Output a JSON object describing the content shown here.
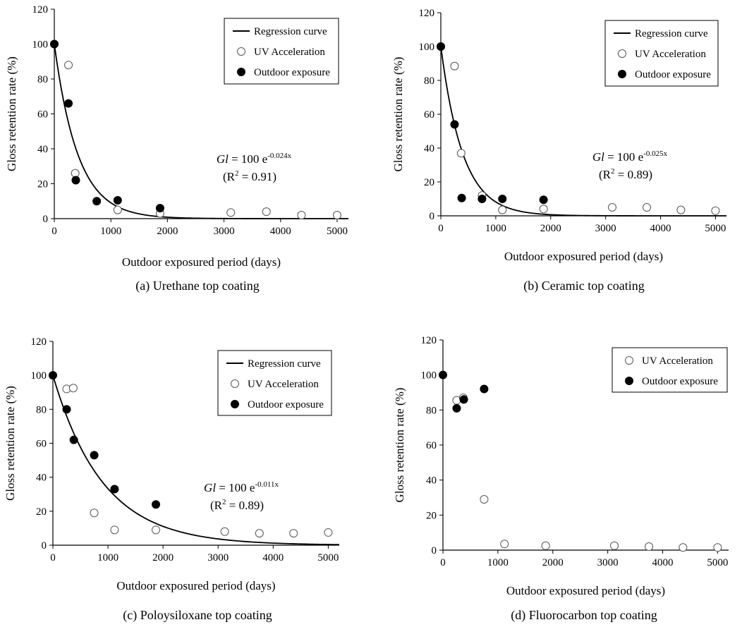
{
  "chart_data": [
    {
      "type": "scatter",
      "caption": "(a) Urethane top coating",
      "xlabel": "Outdoor exposured period (days)",
      "ylabel": "Gloss retention rate (%)",
      "xlim": [
        0,
        5200
      ],
      "ylim": [
        0,
        120
      ],
      "xticks": [
        0,
        1000,
        2000,
        3000,
        4000,
        5000
      ],
      "yticks": [
        0,
        20,
        40,
        60,
        80,
        100,
        120
      ],
      "legend_position": "top-right",
      "equation": {
        "lhs": "Gl",
        "rhs": " = 100 e",
        "exponent": "-0.024x",
        "r2_open": "(R",
        "r2_sup": "2",
        "r2_close": " = 0.91)"
      },
      "regression_k": 0.0024,
      "series": [
        {
          "name": "Regression curve",
          "kind": "line",
          "color": "#000000"
        },
        {
          "name": "UV Acceleration",
          "kind": "open-marker",
          "x": [
            0,
            250,
            370,
            1120,
            1870,
            3120,
            3750,
            4370,
            5000
          ],
          "y": [
            100,
            88,
            26,
            5,
            3,
            3.5,
            4,
            2,
            2
          ]
        },
        {
          "name": "Outdoor exposure",
          "kind": "filled-marker",
          "x": [
            0,
            250,
            380,
            750,
            1120,
            1870
          ],
          "y": [
            100,
            66,
            22,
            10,
            10.5,
            6
          ]
        }
      ]
    },
    {
      "type": "scatter",
      "caption": "(b) Ceramic top coating",
      "xlabel": "Outdoor exposured period (days)",
      "ylabel": "Gloss retention rate (%)",
      "xlim": [
        0,
        5200
      ],
      "ylim": [
        0,
        120
      ],
      "xticks": [
        0,
        1000,
        2000,
        3000,
        4000,
        5000
      ],
      "yticks": [
        0,
        20,
        40,
        60,
        80,
        100,
        120
      ],
      "legend_position": "top-right",
      "equation": {
        "lhs": "Gl",
        "rhs": " = 100 e",
        "exponent": "-0.025x",
        "r2_open": "(R",
        "r2_sup": "2",
        "r2_close": " = 0.89)"
      },
      "regression_k": 0.0025,
      "series": [
        {
          "name": "Regression curve",
          "kind": "line",
          "color": "#000000"
        },
        {
          "name": "UV Acceleration",
          "kind": "open-marker",
          "x": [
            0,
            250,
            370,
            750,
            1120,
            1870,
            3120,
            3750,
            4370,
            5000
          ],
          "y": [
            100,
            88.5,
            37,
            12,
            3.5,
            4,
            5,
            5,
            3.5,
            3
          ]
        },
        {
          "name": "Outdoor exposure",
          "kind": "filled-marker",
          "x": [
            0,
            250,
            380,
            750,
            1120,
            1870
          ],
          "y": [
            100,
            54,
            10.5,
            10,
            10,
            9.5
          ]
        }
      ]
    },
    {
      "type": "scatter",
      "caption": "(c) Poloysiloxane top coating",
      "xlabel": "Outdoor exposured period (days)",
      "ylabel": "Gloss retention rate (%)",
      "xlim": [
        0,
        5200
      ],
      "ylim": [
        0,
        120
      ],
      "xticks": [
        0,
        1000,
        2000,
        3000,
        4000,
        5000
      ],
      "yticks": [
        0,
        20,
        40,
        60,
        80,
        100,
        120
      ],
      "legend_position": "top-right",
      "equation": {
        "lhs": "Gl",
        "rhs": " = 100 e",
        "exponent": "-0.011x",
        "r2_open": "(R",
        "r2_sup": "2",
        "r2_close": " = 0.89)"
      },
      "regression_k": 0.0011,
      "series": [
        {
          "name": "Regression curve",
          "kind": "line",
          "color": "#000000"
        },
        {
          "name": "UV Acceleration",
          "kind": "open-marker",
          "x": [
            250,
            370,
            750,
            1120,
            1870,
            3120,
            3750,
            4370,
            5000
          ],
          "y": [
            92,
            92.5,
            19,
            9,
            9,
            8,
            7,
            7,
            7.5
          ]
        },
        {
          "name": "Outdoor exposure",
          "kind": "filled-marker",
          "x": [
            0,
            250,
            380,
            750,
            1120,
            1870
          ],
          "y": [
            100,
            80,
            62,
            53,
            33,
            24
          ]
        }
      ]
    },
    {
      "type": "scatter",
      "caption": "(d) Fluorocarbon top coating",
      "xlabel": "Outdoor exposured period (days)",
      "ylabel": "Gloss retention rate (%)",
      "xlim": [
        0,
        5200
      ],
      "ylim": [
        0,
        120
      ],
      "xticks": [
        0,
        1000,
        2000,
        3000,
        4000,
        5000
      ],
      "yticks": [
        0,
        20,
        40,
        60,
        80,
        100,
        120
      ],
      "legend_position": "top-right",
      "series": [
        {
          "name": "UV Acceleration",
          "kind": "open-marker",
          "x": [
            250,
            370,
            750,
            1120,
            1870,
            3120,
            3750,
            4370,
            5000
          ],
          "y": [
            85.5,
            87,
            29,
            3.5,
            2.5,
            2.5,
            2,
            1.5,
            1.5
          ]
        },
        {
          "name": "Outdoor exposure",
          "kind": "filled-marker",
          "x": [
            0,
            250,
            380,
            750
          ],
          "y": [
            100,
            81,
            86,
            92
          ]
        }
      ]
    }
  ]
}
